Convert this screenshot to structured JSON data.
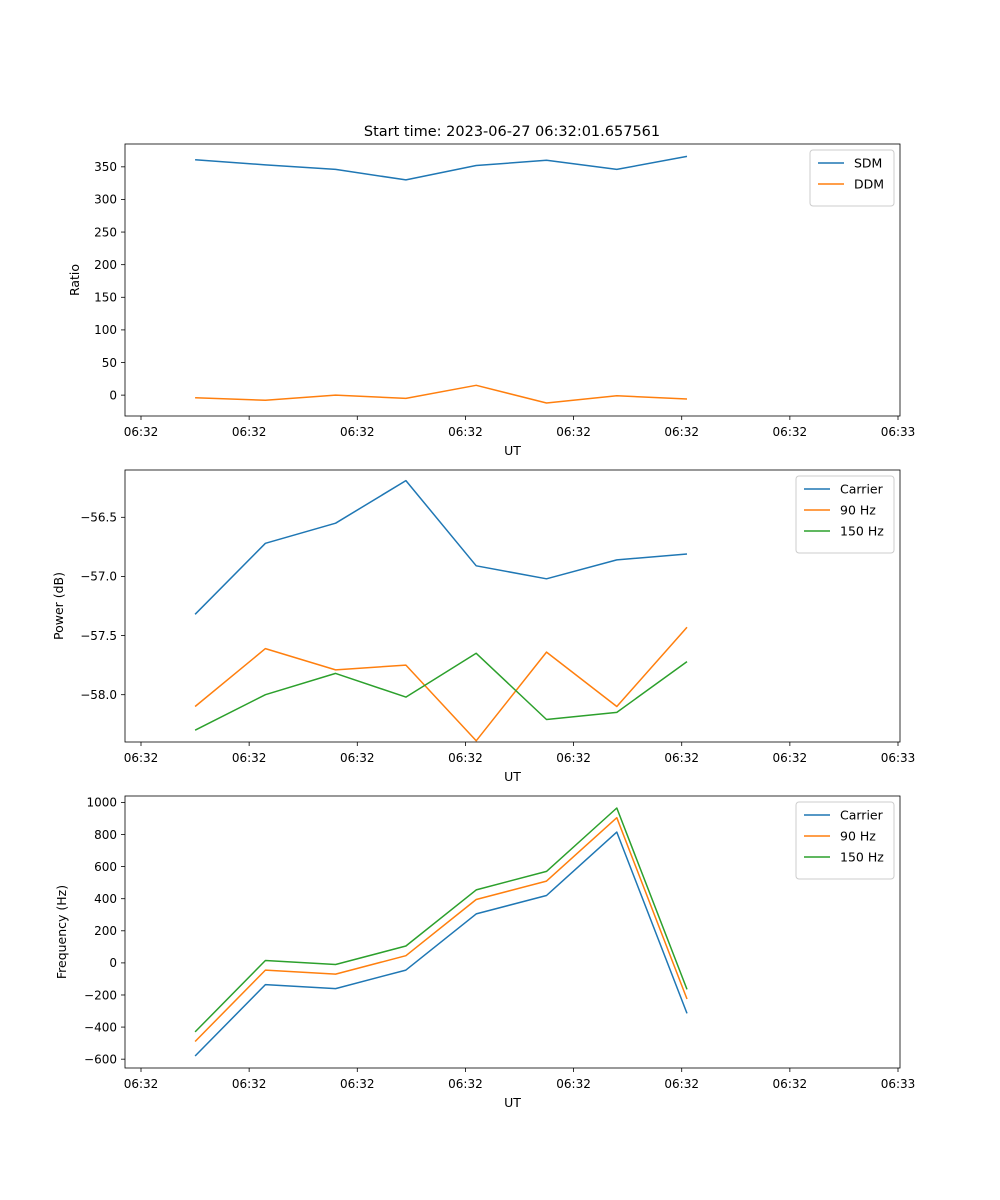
{
  "title": "Start time: 2023-06-27 06:32:01.657561",
  "chart_data": [
    {
      "type": "line",
      "xlabel": "UT",
      "ylabel": "Ratio",
      "x_tick_labels": [
        "06:32",
        "06:32",
        "06:32",
        "06:32",
        "06:32",
        "06:32",
        "06:32",
        "06:33"
      ],
      "x": [
        0,
        1,
        2,
        3,
        4,
        5,
        6,
        7
      ],
      "ylim": [
        -32,
        385
      ],
      "yticks": [
        0,
        50,
        100,
        150,
        200,
        250,
        300,
        350
      ],
      "legend": "top-right",
      "series": [
        {
          "name": "SDM",
          "color": "#1f77b4",
          "values": [
            361,
            353,
            346,
            330,
            352,
            360,
            346,
            366
          ]
        },
        {
          "name": "DDM",
          "color": "#ff7f0e",
          "values": [
            -4,
            -8,
            0,
            -5,
            15,
            -12,
            -1,
            -6
          ]
        }
      ]
    },
    {
      "type": "line",
      "xlabel": "UT",
      "ylabel": "Power (dB)",
      "x_tick_labels": [
        "06:32",
        "06:32",
        "06:32",
        "06:32",
        "06:32",
        "06:32",
        "06:32",
        "06:33"
      ],
      "x": [
        0,
        1,
        2,
        3,
        4,
        5,
        6,
        7
      ],
      "ylim": [
        -58.4,
        -56.1
      ],
      "yticks": [
        -58.0,
        -57.5,
        -57.0,
        -56.5
      ],
      "ytick_labels": [
        "−58.0",
        "−57.5",
        "−57.0",
        "−56.5"
      ],
      "legend": "top-right",
      "series": [
        {
          "name": "Carrier",
          "color": "#1f77b4",
          "values": [
            -57.32,
            -56.72,
            -56.55,
            -56.19,
            -56.91,
            -57.02,
            -56.86,
            -56.81
          ]
        },
        {
          "name": "90 Hz",
          "color": "#ff7f0e",
          "values": [
            -58.1,
            -57.61,
            -57.79,
            -57.75,
            -58.39,
            -57.64,
            -58.1,
            -57.43
          ]
        },
        {
          "name": "150 Hz",
          "color": "#2ca02c",
          "values": [
            -58.3,
            -58.0,
            -57.82,
            -58.02,
            -57.65,
            -58.21,
            -58.15,
            -57.72
          ]
        }
      ]
    },
    {
      "type": "line",
      "xlabel": "UT",
      "ylabel": "Frequency (Hz)",
      "x_tick_labels": [
        "06:32",
        "06:32",
        "06:32",
        "06:32",
        "06:32",
        "06:32",
        "06:32",
        "06:33"
      ],
      "x": [
        0,
        1,
        2,
        3,
        4,
        5,
        6,
        7
      ],
      "ylim": [
        -655,
        1040
      ],
      "yticks": [
        -600,
        -400,
        -200,
        0,
        200,
        400,
        600,
        800,
        1000
      ],
      "ytick_labels": [
        "−600",
        "−400",
        "−200",
        "0",
        "200",
        "400",
        "600",
        "800",
        "1000"
      ],
      "legend": "top-right",
      "series": [
        {
          "name": "Carrier",
          "color": "#1f77b4",
          "values": [
            -580,
            -135,
            -160,
            -45,
            305,
            420,
            815,
            -315
          ]
        },
        {
          "name": "90 Hz",
          "color": "#ff7f0e",
          "values": [
            -490,
            -45,
            -70,
            45,
            395,
            510,
            905,
            -225
          ]
        },
        {
          "name": "150 Hz",
          "color": "#2ca02c",
          "values": [
            -430,
            15,
            -10,
            105,
            455,
            570,
            965,
            -165
          ]
        }
      ]
    }
  ]
}
